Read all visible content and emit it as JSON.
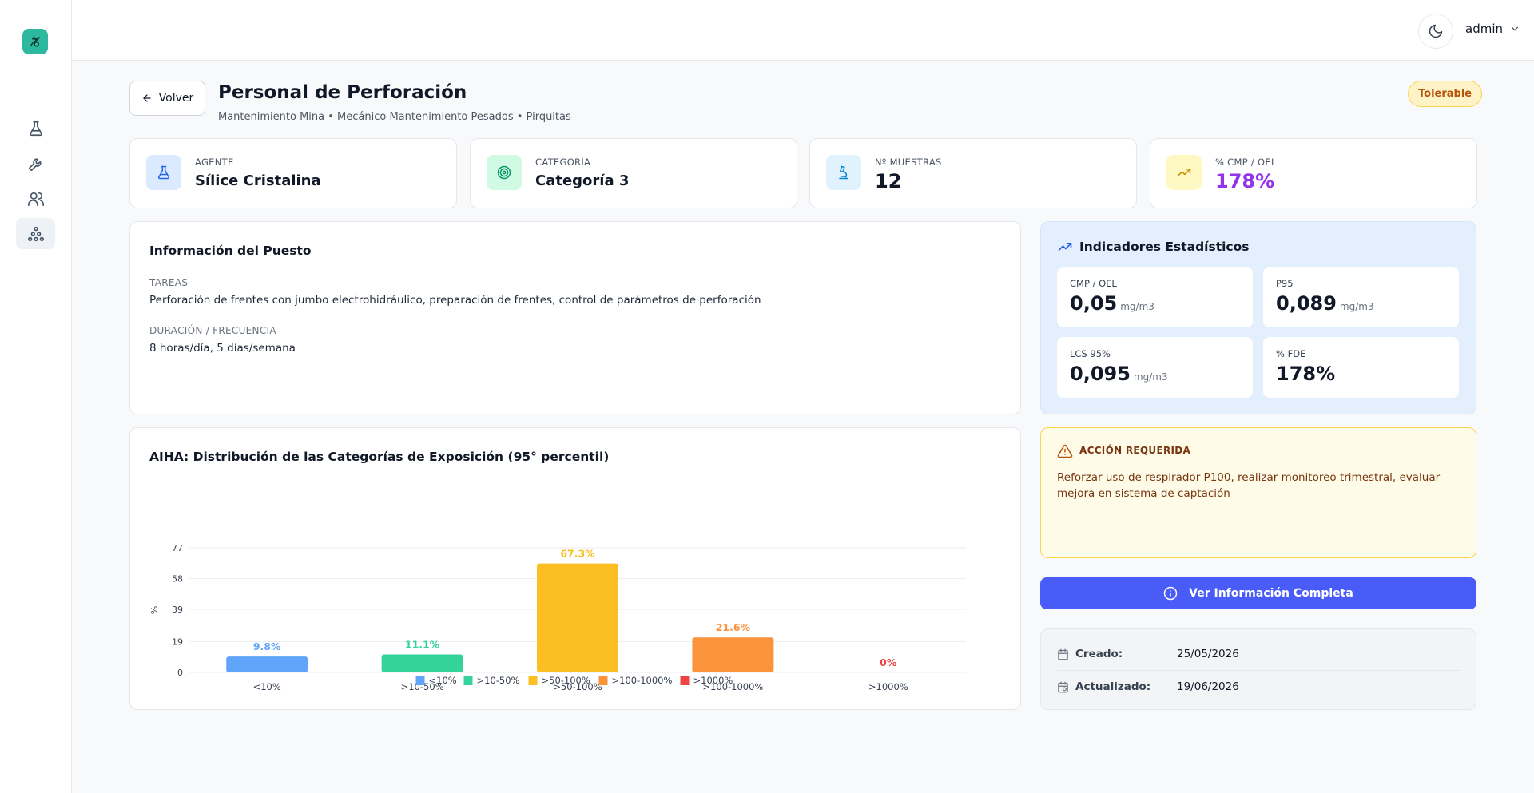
{
  "header": {
    "user": "admin"
  },
  "page": {
    "back_label": "Volver",
    "title": "Personal de Perforación",
    "subtitle": "Mantenimiento Mina • Mecánico Mantenimiento Pesados • Pirquitas",
    "status": "Tolerable"
  },
  "stats": [
    {
      "label": "AGENTE",
      "value": "Sílice Cristalina"
    },
    {
      "label": "CATEGORÍA",
      "value": "Categoría 3"
    },
    {
      "label": "Nº MUESTRAS",
      "value": "12"
    },
    {
      "label": "% CMP / OEL",
      "value": "178%"
    }
  ],
  "info": {
    "title": "Información del Puesto",
    "tasks_label": "TAREAS",
    "tasks_value": "Perforación de frentes con jumbo electrohidráulico, preparación de frentes, control de parámetros de perforación",
    "duration_label": "DURACIÓN / FRECUENCIA",
    "duration_value": "8 horas/día, 5 días/semana"
  },
  "indicators": {
    "title": "Indicadores Estadísticos",
    "items": [
      {
        "label": "CMP / OEL",
        "value": "0,05",
        "unit": "mg/m3"
      },
      {
        "label": "P95",
        "value": "0,089",
        "unit": "mg/m3"
      },
      {
        "label": "LCS 95%",
        "value": "0,095",
        "unit": "mg/m3"
      },
      {
        "label": "% FDE",
        "value": "178%",
        "unit": ""
      }
    ]
  },
  "action": {
    "title": "ACCIÓN REQUERIDA",
    "text": "Reforzar uso de respirador P100, realizar monitoreo trimestral, evaluar mejora en sistema de captación"
  },
  "view_button": "Ver Información Completa",
  "dates": {
    "created_label": "Creado:",
    "created_value": "25/05/2026",
    "updated_label": "Actualizado:",
    "updated_value": "19/06/2026"
  },
  "colors": {
    "primary": "#4a5cf7",
    "accent_teal": "#2fb8a0",
    "status_amber": "#b45309",
    "purple": "#9333ea"
  },
  "chart_data": {
    "type": "bar",
    "title": "AIHA: Distribución de las Categorías de Exposición (95° percentil)",
    "ylabel": "%",
    "categories": [
      "<10%",
      ">10-50%",
      ">50-100%",
      ">100-1000%",
      ">1000%"
    ],
    "values": [
      9.8,
      11.1,
      67.3,
      21.6,
      0
    ],
    "data_labels": [
      "9.8%",
      "11.1%",
      "67.3%",
      "21.6%",
      "0%"
    ],
    "colors": [
      "#60a5fa",
      "#34d399",
      "#fbbf24",
      "#fb923c",
      "#ef4444"
    ],
    "yticks": [
      "0",
      "19",
      "39",
      "58",
      "77"
    ],
    "ylim": [
      0,
      77
    ],
    "grid": true,
    "legend": [
      "<10%",
      ">10-50%",
      ">50-100%",
      ">100-1000%",
      ">1000%"
    ],
    "legend_position": "bottom"
  }
}
